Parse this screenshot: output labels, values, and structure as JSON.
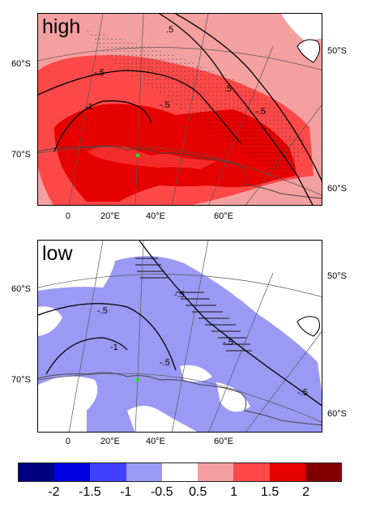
{
  "panels": [
    {
      "label": "high"
    },
    {
      "label": "low"
    }
  ],
  "axes": {
    "lat_left": [
      "60°S",
      "70°S"
    ],
    "lat_right": [
      "50°S",
      "60°S"
    ],
    "lon": [
      "0",
      "20°E",
      "40°E",
      "60°E"
    ]
  },
  "contour_labels": {
    "high": [
      "-.5",
      "-.5",
      "-1",
      "-.5",
      ".5",
      ".5"
    ],
    "low": [
      "-.5",
      "-1",
      "-.5",
      "-.5",
      "-.5",
      "-.5"
    ]
  },
  "colorbar": {
    "colors": [
      "#000080",
      "#0000e0",
      "#4040ff",
      "#9a9af5",
      "#ffffff",
      "#f5a0a0",
      "#ff4848",
      "#e60000",
      "#820000"
    ],
    "ticks": [
      "-2",
      "-1.5",
      "-1",
      "-0.5",
      "0.5",
      "1",
      "1.5",
      "2"
    ]
  }
}
